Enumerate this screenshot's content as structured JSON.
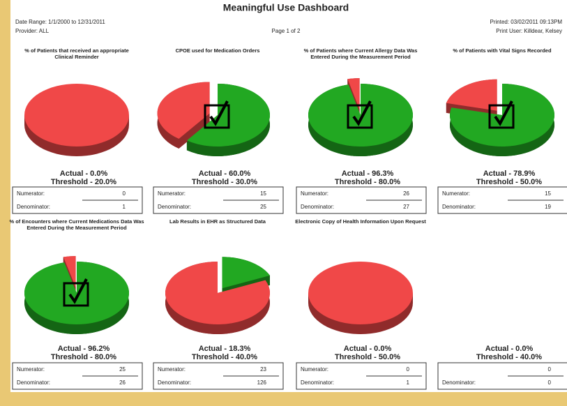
{
  "header": {
    "title": "Meaningful Use Dashboard",
    "date_range": "Date Range: 1/1/2000 to 12/31/2011",
    "provider": "Provider: ALL",
    "page": "Page 1 of 2",
    "printed": "Printed: 03/02/2011 09:13PM",
    "print_user": "Print User: Killdear, Kelsey"
  },
  "chart_data": [
    {
      "type": "pie",
      "title": "% of Patients that received an appropriate Clinical Reminder",
      "values": [
        0,
        100
      ],
      "colors": [
        "#22a822",
        "#f04848"
      ],
      "met": false,
      "actual_label": "Actual - 0.0%",
      "threshold_label": "Threshold - 20.0%",
      "numerator_label": "Numerator:",
      "numerator": 0,
      "denominator_label": "Denominator:",
      "denominator": 1
    },
    {
      "type": "pie",
      "title": "CPOE used for Medication Orders",
      "values": [
        60,
        40
      ],
      "colors": [
        "#22a822",
        "#f04848"
      ],
      "met": true,
      "actual_label": "Actual - 60.0%",
      "threshold_label": "Threshold - 30.0%",
      "numerator_label": "Numerator:",
      "numerator": 15,
      "denominator_label": "Denominator:",
      "denominator": 25
    },
    {
      "type": "pie",
      "title": "% of Patients where Current Allergy Data Was Entered During the Measurement Period",
      "values": [
        96.3,
        3.7
      ],
      "colors": [
        "#22a822",
        "#f04848"
      ],
      "met": true,
      "actual_label": "Actual - 96.3%",
      "threshold_label": "Threshold - 80.0%",
      "numerator_label": "Numerator:",
      "numerator": 26,
      "denominator_label": "Denominator:",
      "denominator": 27
    },
    {
      "type": "pie",
      "title": "% of Patients with Vital Signs Recorded",
      "values": [
        78.9,
        21.1
      ],
      "colors": [
        "#22a822",
        "#f04848"
      ],
      "met": true,
      "actual_label": "Actual - 78.9%",
      "threshold_label": "Threshold - 50.0%",
      "numerator_label": "Numerator:",
      "numerator": 15,
      "denominator_label": "Denominator:",
      "denominator": 19
    },
    {
      "type": "pie",
      "title": "% of Encounters where Current Medications Data Was Entered During the Measurement Period",
      "values": [
        96.2,
        3.8
      ],
      "colors": [
        "#22a822",
        "#f04848"
      ],
      "met": true,
      "actual_label": "Actual - 96.2%",
      "threshold_label": "Threshold - 80.0%",
      "numerator_label": "Numerator:",
      "numerator": 25,
      "denominator_label": "Denominator:",
      "denominator": 26
    },
    {
      "type": "pie",
      "title": "Lab Results in EHR as Structured Data",
      "values": [
        18.3,
        81.7
      ],
      "colors": [
        "#22a822",
        "#f04848"
      ],
      "met": false,
      "actual_label": "Actual - 18.3%",
      "threshold_label": "Threshold - 40.0%",
      "numerator_label": "Numerator:",
      "numerator": 23,
      "denominator_label": "Denominator:",
      "denominator": 126
    },
    {
      "type": "pie",
      "title": "Electronic Copy of Health Information Upon Request",
      "values": [
        0,
        100
      ],
      "colors": [
        "#22a822",
        "#f04848"
      ],
      "met": false,
      "actual_label": "Actual - 0.0%",
      "threshold_label": "Threshold - 50.0%",
      "numerator_label": "Numerator:",
      "numerator": 0,
      "denominator_label": "Denominator:",
      "denominator": 1
    },
    {
      "type": "pie",
      "met": false,
      "actual_label": "Actual - 0.0%",
      "threshold_label": "Threshold - 40.0%",
      "numerator": 0,
      "denominator_label": "Denominator:",
      "denominator": 0
    }
  ]
}
